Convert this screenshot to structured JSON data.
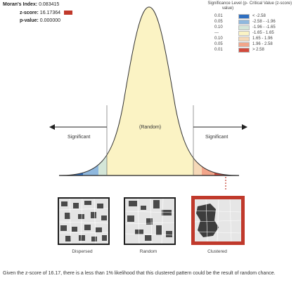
{
  "stats": {
    "moran_label": "Moran's Index:",
    "moran_value": "0.083415",
    "z_label": "z-score:",
    "z_value": "16.17364",
    "p_label": "p-value:",
    "p_value": "0.000000"
  },
  "legend": {
    "header_sig": "Significance Level (p-value)",
    "header_crit": "Critical Value (z-score)",
    "rows": [
      {
        "p": "0.01",
        "z": "< -2.58",
        "color": "#2f6fc0"
      },
      {
        "p": "0.05",
        "z": "-2.58 - -1.96",
        "color": "#8fb8de"
      },
      {
        "p": "0.10",
        "z": "-1.96 - -1.65",
        "color": "#d4e6d8"
      },
      {
        "p": "---",
        "z": "-1.65 - 1.65",
        "color": "#fbf3c4"
      },
      {
        "p": "0.10",
        "z": "1.65 - 1.96",
        "color": "#f6d9b8"
      },
      {
        "p": "0.05",
        "z": "1.96 - 2.58",
        "color": "#f2a58a"
      },
      {
        "p": "0.01",
        "z": "> 2.58",
        "color": "#d24a3c"
      }
    ]
  },
  "curve": {
    "significant_left": "Significant",
    "random": "(Random)",
    "significant_right": "Significant"
  },
  "panels": [
    {
      "label": "Dispersed"
    },
    {
      "label": "Random"
    },
    {
      "label": "Clustered"
    }
  ],
  "footer": "Given the z-score of 16.17, there is a less than 1% likelihood that this clustered pattern could be the result of random chance."
}
